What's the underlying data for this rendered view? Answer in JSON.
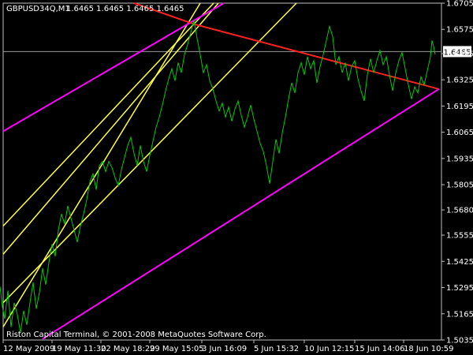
{
  "header": {
    "symbol_timeframe": "GBPUSD34Q,M1",
    "ohlc": [
      "1.6465",
      "1.6465",
      "1.6465",
      "1.6465"
    ]
  },
  "footer": {
    "copyright": "Riston Capital Terminal, © 2001-2008 MetaQuotes Software Corp."
  },
  "current_price": {
    "label": "1.6465",
    "value": 1.6465
  },
  "colors": {
    "background": "#000000",
    "price_line": "#00cc00",
    "frame": "#c0c0c0",
    "text": "#ffffff",
    "bid_line": "#9a9a9a",
    "red_line": "#ff2020",
    "yellow_lines": "#ffff40",
    "magenta_lines": "#ff00ff"
  },
  "chart_data": {
    "type": "line",
    "title": "GBPUSD34Q,M1",
    "y_ticks": [
      "1.6705",
      "1.6575",
      "1.6455",
      "1.6325",
      "1.6195",
      "1.6065",
      "1.5935",
      "1.5805",
      "1.5680",
      "1.5555",
      "1.5425",
      "1.5295",
      "1.5165",
      "1.5035"
    ],
    "x_ticks": [
      "12 May 2009",
      "19 May 11:30",
      "22 May 18:29",
      "29 May 15:05",
      "3 Jun 16:09",
      "5 Jun 15:32",
      "10 Jun 12:15",
      "15 Jun 14:06",
      "18 Jun 10:59"
    ],
    "ylim": [
      1.5035,
      1.6705
    ],
    "series": [
      {
        "type": "close_line",
        "points": [
          [
            0,
            1.53
          ],
          [
            3,
            1.52
          ],
          [
            6,
            1.514
          ],
          [
            10,
            1.528
          ],
          [
            14,
            1.51
          ],
          [
            18,
            1.522
          ],
          [
            22,
            1.516
          ],
          [
            26,
            1.507
          ],
          [
            30,
            1.518
          ],
          [
            34,
            1.511
          ],
          [
            38,
            1.522
          ],
          [
            42,
            1.532
          ],
          [
            46,
            1.519
          ],
          [
            50,
            1.527
          ],
          [
            54,
            1.539
          ],
          [
            58,
            1.531
          ],
          [
            62,
            1.542
          ],
          [
            66,
            1.551
          ],
          [
            70,
            1.545
          ],
          [
            74,
            1.558
          ],
          [
            78,
            1.566
          ],
          [
            82,
            1.561
          ],
          [
            86,
            1.57
          ],
          [
            90,
            1.564
          ],
          [
            94,
            1.558
          ],
          [
            98,
            1.552
          ],
          [
            102,
            1.56
          ],
          [
            106,
            1.566
          ],
          [
            110,
            1.573
          ],
          [
            114,
            1.582
          ],
          [
            118,
            1.586
          ],
          [
            122,
            1.578
          ],
          [
            126,
            1.59
          ],
          [
            130,
            1.592
          ],
          [
            134,
            1.587
          ],
          [
            138,
            1.592
          ],
          [
            142,
            1.589
          ],
          [
            146,
            1.584
          ],
          [
            150,
            1.58
          ],
          [
            154,
            1.588
          ],
          [
            158,
            1.594
          ],
          [
            162,
            1.6
          ],
          [
            166,
            1.604
          ],
          [
            170,
            1.596
          ],
          [
            174,
            1.59
          ],
          [
            178,
            1.6
          ],
          [
            182,
            1.592
          ],
          [
            186,
            1.587
          ],
          [
            190,
            1.595
          ],
          [
            194,
            1.602
          ],
          [
            198,
            1.609
          ],
          [
            202,
            1.614
          ],
          [
            206,
            1.62
          ],
          [
            210,
            1.627
          ],
          [
            214,
            1.633
          ],
          [
            218,
            1.638
          ],
          [
            222,
            1.632
          ],
          [
            226,
            1.641
          ],
          [
            230,
            1.636
          ],
          [
            234,
            1.645
          ],
          [
            238,
            1.65
          ],
          [
            242,
            1.656
          ],
          [
            246,
            1.662
          ],
          [
            250,
            1.653
          ],
          [
            254,
            1.645
          ],
          [
            258,
            1.636
          ],
          [
            262,
            1.64
          ],
          [
            266,
            1.632
          ],
          [
            270,
            1.628
          ],
          [
            274,
            1.622
          ],
          [
            278,
            1.617
          ],
          [
            282,
            1.621
          ],
          [
            286,
            1.614
          ],
          [
            290,
            1.619
          ],
          [
            294,
            1.612
          ],
          [
            298,
            1.618
          ],
          [
            302,
            1.622
          ],
          [
            306,
            1.615
          ],
          [
            310,
            1.609
          ],
          [
            314,
            1.614
          ],
          [
            318,
            1.62
          ],
          [
            322,
            1.613
          ],
          [
            326,
            1.607
          ],
          [
            330,
            1.601
          ],
          [
            334,
            1.597
          ],
          [
            338,
            1.59
          ],
          [
            342,
            1.581
          ],
          [
            346,
            1.592
          ],
          [
            350,
            1.603
          ],
          [
            354,
            1.596
          ],
          [
            358,
            1.606
          ],
          [
            362,
            1.614
          ],
          [
            366,
            1.623
          ],
          [
            370,
            1.631
          ],
          [
            374,
            1.626
          ],
          [
            378,
            1.636
          ],
          [
            382,
            1.641
          ],
          [
            386,
            1.635
          ],
          [
            390,
            1.644
          ],
          [
            394,
            1.638
          ],
          [
            398,
            1.642
          ],
          [
            402,
            1.631
          ],
          [
            406,
            1.639
          ],
          [
            410,
            1.645
          ],
          [
            414,
            1.652
          ],
          [
            418,
            1.659
          ],
          [
            422,
            1.654
          ],
          [
            426,
            1.64
          ],
          [
            430,
            1.644
          ],
          [
            434,
            1.636
          ],
          [
            438,
            1.641
          ],
          [
            442,
            1.632
          ],
          [
            446,
            1.639
          ],
          [
            450,
            1.642
          ],
          [
            454,
            1.633
          ],
          [
            458,
            1.627
          ],
          [
            462,
            1.622
          ],
          [
            466,
            1.635
          ],
          [
            470,
            1.643
          ],
          [
            474,
            1.636
          ],
          [
            478,
            1.642
          ],
          [
            482,
            1.647
          ],
          [
            486,
            1.64
          ],
          [
            490,
            1.644
          ],
          [
            494,
            1.635
          ],
          [
            498,
            1.627
          ],
          [
            502,
            1.636
          ],
          [
            506,
            1.642
          ],
          [
            510,
            1.646
          ],
          [
            514,
            1.638
          ],
          [
            518,
            1.63
          ],
          [
            522,
            1.623
          ],
          [
            526,
            1.629
          ],
          [
            530,
            1.626
          ],
          [
            534,
            1.634
          ],
          [
            538,
            1.63
          ],
          [
            542,
            1.637
          ],
          [
            546,
            1.644
          ],
          [
            548,
            1.652
          ],
          [
            550,
            1.649
          ],
          [
            552,
            1.645
          ]
        ]
      }
    ],
    "annotations": {
      "red_trendline": [
        [
          170,
          1.6705
        ],
        [
          247,
          1.66
        ],
        [
          556,
          1.628
        ]
      ],
      "yellow_channel": [
        [
          [
            4,
            1.56
          ],
          [
            271,
            1.6705
          ]
        ],
        [
          [
            4,
            1.546
          ],
          [
            277,
            1.6705
          ]
        ],
        [
          [
            4,
            1.522
          ],
          [
            376,
            1.6705
          ]
        ],
        [
          [
            4,
            1.51
          ],
          [
            254,
            1.6705
          ]
        ]
      ],
      "magenta_lines": [
        [
          [
            4,
            1.607
          ],
          [
            284,
            1.6705
          ]
        ],
        [
          [
            54,
            1.504
          ],
          [
            557,
            1.628
          ]
        ]
      ]
    }
  }
}
